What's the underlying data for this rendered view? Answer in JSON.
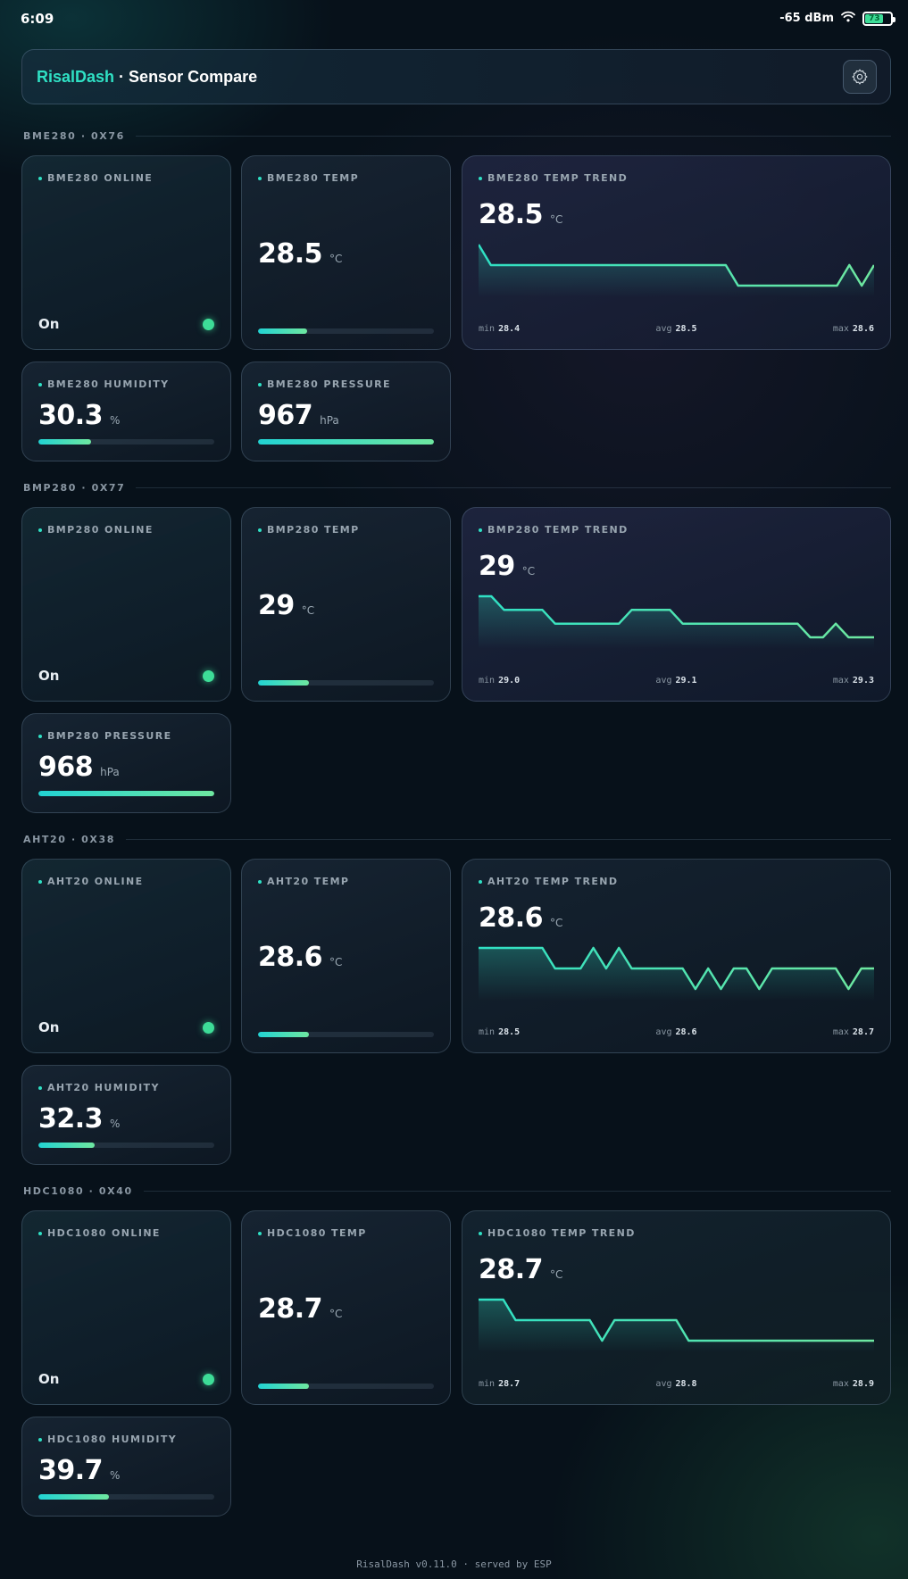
{
  "status": {
    "time": "6:09",
    "signal": "-65 dBm",
    "battery": "73"
  },
  "header": {
    "brand": "RisalDash",
    "separator": " · ",
    "title": "Sensor Compare"
  },
  "colors": {
    "accent": "#2fe0c4",
    "online": "#3ddc97",
    "line": "#5ee8b0"
  },
  "sections": [
    {
      "title": "BME280 · 0X76",
      "online": {
        "label": "BME280 ONLINE",
        "state": "On"
      },
      "temp": {
        "label": "BME280 TEMP",
        "value": "28.5",
        "unit": "°C",
        "level": 0.28
      },
      "trend": {
        "label": "BME280 TEMP TREND",
        "value": "28.5",
        "unit": "°C",
        "points": [
          28.6,
          28.5,
          28.5,
          28.5,
          28.5,
          28.5,
          28.5,
          28.5,
          28.5,
          28.5,
          28.5,
          28.5,
          28.5,
          28.5,
          28.5,
          28.5,
          28.5,
          28.5,
          28.5,
          28.5,
          28.5,
          28.4,
          28.4,
          28.4,
          28.4,
          28.4,
          28.4,
          28.4,
          28.4,
          28.4,
          28.5,
          28.4,
          28.5
        ],
        "min_label": "min",
        "min": "28.4",
        "avg_label": "avg",
        "avg": "28.5",
        "max_label": "max",
        "max": "28.6"
      },
      "extras": [
        {
          "label": "BME280 HUMIDITY",
          "value": "30.3",
          "unit": "%",
          "level": 0.3
        },
        {
          "label": "BME280 PRESSURE",
          "value": "967",
          "unit": "hPa",
          "level": 1.0
        }
      ]
    },
    {
      "title": "BMP280 · 0X77",
      "online": {
        "label": "BMP280 ONLINE",
        "state": "On"
      },
      "temp": {
        "label": "BMP280 TEMP",
        "value": "29",
        "unit": "°C",
        "level": 0.29
      },
      "trend": {
        "label": "BMP280 TEMP TREND",
        "value": "29",
        "unit": "°C",
        "points": [
          29.3,
          29.3,
          29.2,
          29.2,
          29.2,
          29.2,
          29.1,
          29.1,
          29.1,
          29.1,
          29.1,
          29.1,
          29.2,
          29.2,
          29.2,
          29.2,
          29.1,
          29.1,
          29.1,
          29.1,
          29.1,
          29.1,
          29.1,
          29.1,
          29.1,
          29.1,
          29.0,
          29.0,
          29.1,
          29.0,
          29.0,
          29.0
        ],
        "min_label": "min",
        "min": "29.0",
        "avg_label": "avg",
        "avg": "29.1",
        "max_label": "max",
        "max": "29.3"
      },
      "extras": [
        {
          "label": "BMP280 PRESSURE",
          "value": "968",
          "unit": "hPa",
          "level": 1.0
        }
      ]
    },
    {
      "title": "AHT20 · 0X38",
      "online": {
        "label": "AHT20 ONLINE",
        "state": "On"
      },
      "temp": {
        "label": "AHT20 TEMP",
        "value": "28.6",
        "unit": "°C",
        "level": 0.29
      },
      "trend": {
        "label": "AHT20 TEMP TREND",
        "value": "28.6",
        "unit": "°C",
        "points": [
          28.7,
          28.7,
          28.7,
          28.7,
          28.7,
          28.7,
          28.6,
          28.6,
          28.6,
          28.7,
          28.6,
          28.7,
          28.6,
          28.6,
          28.6,
          28.6,
          28.6,
          28.5,
          28.6,
          28.5,
          28.6,
          28.6,
          28.5,
          28.6,
          28.6,
          28.6,
          28.6,
          28.6,
          28.6,
          28.5,
          28.6,
          28.6
        ],
        "min_label": "min",
        "min": "28.5",
        "avg_label": "avg",
        "avg": "28.6",
        "max_label": "max",
        "max": "28.7"
      },
      "extras": [
        {
          "label": "AHT20 HUMIDITY",
          "value": "32.3",
          "unit": "%",
          "level": 0.32
        }
      ]
    },
    {
      "title": "HDC1080 · 0X40",
      "online": {
        "label": "HDC1080 ONLINE",
        "state": "On"
      },
      "temp": {
        "label": "HDC1080 TEMP",
        "value": "28.7",
        "unit": "°C",
        "level": 0.29
      },
      "trend": {
        "label": "HDC1080 TEMP TREND",
        "value": "28.7",
        "unit": "°C",
        "points": [
          28.9,
          28.9,
          28.9,
          28.8,
          28.8,
          28.8,
          28.8,
          28.8,
          28.8,
          28.8,
          28.7,
          28.8,
          28.8,
          28.8,
          28.8,
          28.8,
          28.8,
          28.7,
          28.7,
          28.7,
          28.7,
          28.7,
          28.7,
          28.7,
          28.7,
          28.7,
          28.7,
          28.7,
          28.7,
          28.7,
          28.7,
          28.7,
          28.7
        ],
        "min_label": "min",
        "min": "28.7",
        "avg_label": "avg",
        "avg": "28.8",
        "max_label": "max",
        "max": "28.9"
      },
      "extras": [
        {
          "label": "HDC1080 HUMIDITY",
          "value": "39.7",
          "unit": "%",
          "level": 0.4
        }
      ]
    }
  ],
  "footer": "RisalDash v0.11.0 · served by ESP"
}
